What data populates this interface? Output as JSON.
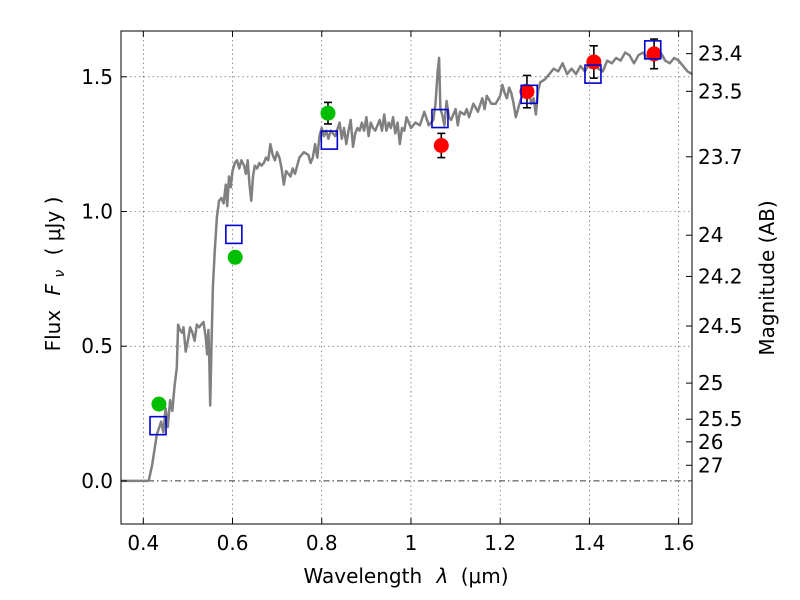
{
  "chart_data": {
    "type": "scatter",
    "xlabel": "Wavelength",
    "xlabel_symbol": "λ",
    "xlabel_unit": "(μm)",
    "ylabel": "Flux",
    "ylabel_symbol": "F",
    "ylabel_subscript": "ν",
    "ylabel_unit": "( μJy )",
    "y2label": "Magnitude (AB)",
    "xlim": [
      0.35,
      1.63
    ],
    "ylim": [
      -0.16,
      1.67
    ],
    "grid": true,
    "x_ticks": [
      0.4,
      0.6,
      0.8,
      1.0,
      1.2,
      1.4,
      1.6
    ],
    "x_tick_labels": [
      "0.4",
      "0.6",
      "0.8",
      "1",
      "1.2",
      "1.4",
      "1.6"
    ],
    "y_ticks": [
      0.0,
      0.5,
      1.0,
      1.5
    ],
    "y_tick_labels": [
      "0.0",
      "0.5",
      "1.0",
      "1.5"
    ],
    "mag_ticks": [
      {
        "label": "23.4",
        "flux": 1.586
      },
      {
        "label": "23.5",
        "flux": 1.446
      },
      {
        "label": "23.7",
        "flux": 1.203
      },
      {
        "label": "24",
        "flux": 0.912
      },
      {
        "label": "24.2",
        "flux": 0.759
      },
      {
        "label": "24.5",
        "flux": 0.575
      },
      {
        "label": "25",
        "flux": 0.363
      },
      {
        "label": "25.5",
        "flux": 0.229
      },
      {
        "label": "26",
        "flux": 0.145
      },
      {
        "label": "27",
        "flux": 0.058
      }
    ],
    "series": [
      {
        "kind": "line",
        "color": "#808080",
        "points": [
          [
            0.35,
            0.0
          ],
          [
            0.4,
            0.0
          ],
          [
            0.412,
            0.0
          ],
          [
            0.42,
            0.06
          ],
          [
            0.43,
            0.17
          ],
          [
            0.44,
            0.22
          ],
          [
            0.445,
            0.18
          ],
          [
            0.45,
            0.27
          ],
          [
            0.455,
            0.2
          ],
          [
            0.46,
            0.3
          ],
          [
            0.465,
            0.26
          ],
          [
            0.47,
            0.35
          ],
          [
            0.475,
            0.42
          ],
          [
            0.478,
            0.58
          ],
          [
            0.482,
            0.56
          ],
          [
            0.487,
            0.55
          ],
          [
            0.49,
            0.57
          ],
          [
            0.495,
            0.48
          ],
          [
            0.5,
            0.52
          ],
          [
            0.505,
            0.57
          ],
          [
            0.51,
            0.55
          ],
          [
            0.515,
            0.52
          ],
          [
            0.52,
            0.58
          ],
          [
            0.525,
            0.57
          ],
          [
            0.53,
            0.58
          ],
          [
            0.535,
            0.59
          ],
          [
            0.54,
            0.53
          ],
          [
            0.543,
            0.47
          ],
          [
            0.546,
            0.56
          ],
          [
            0.548,
            0.45
          ],
          [
            0.55,
            0.28
          ],
          [
            0.553,
            0.52
          ],
          [
            0.556,
            0.72
          ],
          [
            0.56,
            0.85
          ],
          [
            0.565,
            0.98
          ],
          [
            0.57,
            1.04
          ],
          [
            0.575,
            1.05
          ],
          [
            0.58,
            1.03
          ],
          [
            0.585,
            1.1
          ],
          [
            0.588,
            1.02
          ],
          [
            0.592,
            1.13
          ],
          [
            0.596,
            1.09
          ],
          [
            0.6,
            1.15
          ],
          [
            0.605,
            1.18
          ],
          [
            0.61,
            1.19
          ],
          [
            0.615,
            1.16
          ],
          [
            0.62,
            1.19
          ],
          [
            0.626,
            1.17
          ],
          [
            0.63,
            1.14
          ],
          [
            0.634,
            1.19
          ],
          [
            0.638,
            1.1
          ],
          [
            0.642,
            1.04
          ],
          [
            0.646,
            1.13
          ],
          [
            0.65,
            1.17
          ],
          [
            0.655,
            1.16
          ],
          [
            0.66,
            1.18
          ],
          [
            0.665,
            1.17
          ],
          [
            0.67,
            1.18
          ],
          [
            0.675,
            1.2
          ],
          [
            0.68,
            1.19
          ],
          [
            0.685,
            1.25
          ],
          [
            0.69,
            1.21
          ],
          [
            0.695,
            1.19
          ],
          [
            0.7,
            1.22
          ],
          [
            0.705,
            1.2
          ],
          [
            0.71,
            1.16
          ],
          [
            0.715,
            1.1
          ],
          [
            0.72,
            1.15
          ],
          [
            0.73,
            1.13
          ],
          [
            0.735,
            1.16
          ],
          [
            0.74,
            1.14
          ],
          [
            0.75,
            1.2
          ],
          [
            0.76,
            1.22
          ],
          [
            0.77,
            1.21
          ],
          [
            0.775,
            1.18
          ],
          [
            0.78,
            1.2
          ],
          [
            0.785,
            1.25
          ],
          [
            0.79,
            1.2
          ],
          [
            0.795,
            1.28
          ],
          [
            0.8,
            1.31
          ],
          [
            0.805,
            1.28
          ],
          [
            0.81,
            1.3
          ],
          [
            0.815,
            1.27
          ],
          [
            0.82,
            1.3
          ],
          [
            0.83,
            1.28
          ],
          [
            0.84,
            1.33
          ],
          [
            0.845,
            1.27
          ],
          [
            0.85,
            1.31
          ],
          [
            0.855,
            1.25
          ],
          [
            0.86,
            1.3
          ],
          [
            0.865,
            1.34
          ],
          [
            0.87,
            1.24
          ],
          [
            0.875,
            1.29
          ],
          [
            0.88,
            1.31
          ],
          [
            0.885,
            1.3
          ],
          [
            0.89,
            1.33
          ],
          [
            0.895,
            1.3
          ],
          [
            0.9,
            1.35
          ],
          [
            0.905,
            1.28
          ],
          [
            0.91,
            1.33
          ],
          [
            0.915,
            1.31
          ],
          [
            0.92,
            1.3
          ],
          [
            0.93,
            1.34
          ],
          [
            0.935,
            1.3
          ],
          [
            0.94,
            1.36
          ],
          [
            0.945,
            1.3
          ],
          [
            0.95,
            1.33
          ],
          [
            0.955,
            1.31
          ],
          [
            0.96,
            1.35
          ],
          [
            0.965,
            1.29
          ],
          [
            0.97,
            1.33
          ],
          [
            0.975,
            1.25
          ],
          [
            0.98,
            1.31
          ],
          [
            0.985,
            1.3
          ],
          [
            0.99,
            1.35
          ],
          [
            1.0,
            1.31
          ],
          [
            1.01,
            1.33
          ],
          [
            1.02,
            1.32
          ],
          [
            1.03,
            1.37
          ],
          [
            1.04,
            1.32
          ],
          [
            1.05,
            1.34
          ],
          [
            1.055,
            1.4
          ],
          [
            1.06,
            1.52
          ],
          [
            1.063,
            1.57
          ],
          [
            1.066,
            1.38
          ],
          [
            1.07,
            1.36
          ],
          [
            1.075,
            1.32
          ],
          [
            1.08,
            1.41
          ],
          [
            1.085,
            1.35
          ],
          [
            1.09,
            1.34
          ],
          [
            1.1,
            1.38
          ],
          [
            1.105,
            1.32
          ],
          [
            1.11,
            1.37
          ],
          [
            1.12,
            1.36
          ],
          [
            1.125,
            1.38
          ],
          [
            1.13,
            1.35
          ],
          [
            1.14,
            1.4
          ],
          [
            1.15,
            1.37
          ],
          [
            1.16,
            1.42
          ],
          [
            1.165,
            1.38
          ],
          [
            1.17,
            1.43
          ],
          [
            1.18,
            1.4
          ],
          [
            1.19,
            1.4
          ],
          [
            1.2,
            1.43
          ],
          [
            1.205,
            1.47
          ],
          [
            1.21,
            1.44
          ],
          [
            1.215,
            1.42
          ],
          [
            1.22,
            1.46
          ],
          [
            1.225,
            1.44
          ],
          [
            1.23,
            1.4
          ],
          [
            1.235,
            1.35
          ],
          [
            1.24,
            1.38
          ],
          [
            1.245,
            1.41
          ],
          [
            1.25,
            1.43
          ],
          [
            1.255,
            1.47
          ],
          [
            1.26,
            1.45
          ],
          [
            1.265,
            1.44
          ],
          [
            1.27,
            1.4
          ],
          [
            1.275,
            1.42
          ],
          [
            1.28,
            1.36
          ],
          [
            1.285,
            1.45
          ],
          [
            1.29,
            1.48
          ],
          [
            1.3,
            1.49
          ],
          [
            1.31,
            1.51
          ],
          [
            1.32,
            1.53
          ],
          [
            1.33,
            1.52
          ],
          [
            1.34,
            1.55
          ],
          [
            1.35,
            1.51
          ],
          [
            1.36,
            1.53
          ],
          [
            1.37,
            1.51
          ],
          [
            1.38,
            1.54
          ],
          [
            1.39,
            1.52
          ],
          [
            1.4,
            1.55
          ],
          [
            1.41,
            1.57
          ],
          [
            1.42,
            1.53
          ],
          [
            1.43,
            1.52
          ],
          [
            1.44,
            1.56
          ],
          [
            1.45,
            1.55
          ],
          [
            1.46,
            1.57
          ],
          [
            1.47,
            1.56
          ],
          [
            1.48,
            1.59
          ],
          [
            1.49,
            1.58
          ],
          [
            1.5,
            1.55
          ],
          [
            1.51,
            1.58
          ],
          [
            1.52,
            1.59
          ],
          [
            1.53,
            1.57
          ],
          [
            1.54,
            1.6
          ],
          [
            1.55,
            1.57
          ],
          [
            1.56,
            1.59
          ],
          [
            1.57,
            1.56
          ],
          [
            1.58,
            1.55
          ],
          [
            1.59,
            1.57
          ],
          [
            1.6,
            1.56
          ],
          [
            1.61,
            1.54
          ],
          [
            1.62,
            1.52
          ],
          [
            1.63,
            1.51
          ]
        ]
      },
      {
        "kind": "points",
        "marker": "circle",
        "color": "#00bf00",
        "points": [
          {
            "x": 0.435,
            "y": 0.285,
            "err": 0.0
          },
          {
            "x": 0.606,
            "y": 0.83,
            "err": 0.0
          },
          {
            "x": 0.814,
            "y": 1.365,
            "err": 0.04
          }
        ]
      },
      {
        "kind": "points",
        "marker": "circle",
        "color": "#ff0000",
        "points": [
          {
            "x": 1.068,
            "y": 1.245,
            "err": 0.045
          },
          {
            "x": 1.26,
            "y": 1.445,
            "err": 0.06
          },
          {
            "x": 1.41,
            "y": 1.555,
            "err": 0.06
          },
          {
            "x": 1.545,
            "y": 1.585,
            "err": 0.055
          }
        ]
      },
      {
        "kind": "points",
        "marker": "open-square",
        "color": "#0000cc",
        "points": [
          {
            "x": 0.433,
            "y": 0.205
          },
          {
            "x": 0.603,
            "y": 0.915
          },
          {
            "x": 0.817,
            "y": 1.265
          },
          {
            "x": 1.065,
            "y": 1.345
          },
          {
            "x": 1.265,
            "y": 1.435
          },
          {
            "x": 1.408,
            "y": 1.51
          },
          {
            "x": 1.542,
            "y": 1.6
          }
        ]
      }
    ]
  }
}
